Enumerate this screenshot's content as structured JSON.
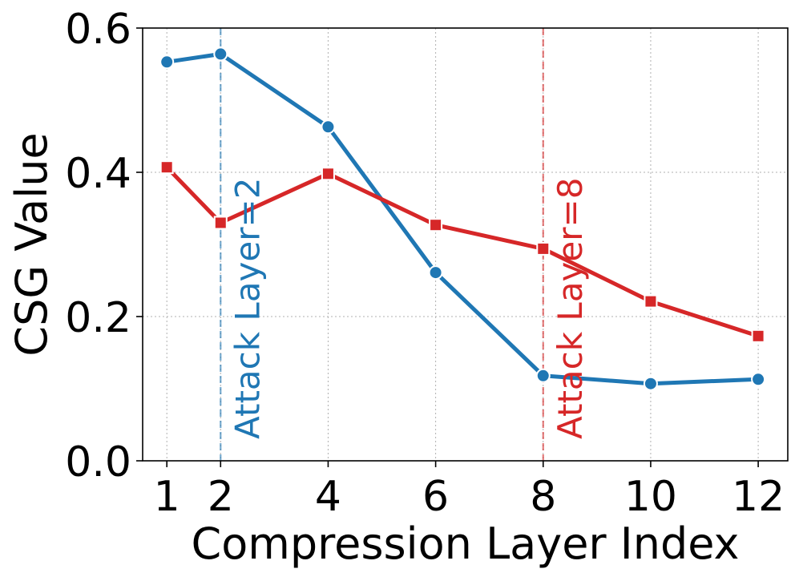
{
  "chart_data": {
    "type": "line",
    "xlabel": "Compression Layer Index",
    "ylabel": "CSG Value",
    "xlim": [
      0.55,
      12.55
    ],
    "ylim": [
      0.0,
      0.6
    ],
    "x_ticks": [
      1,
      2,
      4,
      6,
      8,
      10,
      12
    ],
    "x_tick_labels": [
      "1",
      "2",
      "4",
      "6",
      "8",
      "10",
      "12"
    ],
    "y_ticks": [
      0.0,
      0.2,
      0.4,
      0.6
    ],
    "y_tick_labels": [
      "0.0",
      "0.2",
      "0.4",
      "0.6"
    ],
    "grid": true,
    "series": [
      {
        "color": "#1f77b4",
        "marker": "circle",
        "x": [
          1,
          2,
          4,
          6,
          8,
          10,
          12
        ],
        "values": [
          0.553,
          0.564,
          0.463,
          0.261,
          0.118,
          0.107,
          0.113
        ]
      },
      {
        "color": "#d62728",
        "marker": "square",
        "x": [
          1,
          2,
          4,
          6,
          8,
          10,
          12
        ],
        "values": [
          0.407,
          0.33,
          0.398,
          0.327,
          0.294,
          0.221,
          0.173
        ]
      }
    ],
    "vlines": [
      {
        "x": 2,
        "color": "#1f77b4",
        "label": "Attack Layer=2"
      },
      {
        "x": 8,
        "color": "#d62728",
        "label": "Attack Layer=8"
      }
    ]
  }
}
